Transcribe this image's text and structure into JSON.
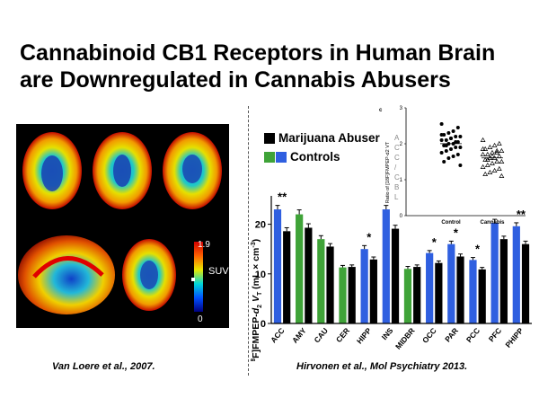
{
  "slide": {
    "title_line1": "Cannabinoid CB1 Receptors in Human Brain",
    "title_line2": "are Downregulated in Cannabis Abusers",
    "citation_left": "Van Loere et al., 2007.",
    "citation_right": "Hirvonen et al., Mol Psychiatry 2013."
  },
  "pet_scan": {
    "colorbar_max": "1.9",
    "colorbar_min": "0",
    "colorbar_unit": "SUV"
  },
  "colors": {
    "marijuana": "#000000",
    "controls_blue": "#2f5fe0",
    "controls_green": "#3fa338"
  },
  "chart_data": [
    {
      "type": "bar",
      "categories": [
        "ACC",
        "AMY",
        "CAU",
        "CER",
        "HIPP",
        "INS",
        "MIDBR",
        "OCC",
        "PAR",
        "PCC",
        "PFC",
        "PHIPP"
      ],
      "series": [
        {
          "name": "Controls",
          "values": [
            23,
            22,
            17,
            11.3,
            15,
            23,
            11,
            14.2,
            16,
            12.8,
            20.3,
            19.6
          ],
          "errors": [
            0.8,
            0.9,
            0.7,
            0.4,
            0.7,
            0.8,
            0.5,
            0.5,
            0.6,
            0.5,
            0.7,
            0.7
          ]
        },
        {
          "name": "Marijuana Abuser",
          "values": [
            18.6,
            19.3,
            15.5,
            11.4,
            12.9,
            19.1,
            11.4,
            12.2,
            13.5,
            10.9,
            17,
            16
          ],
          "errors": [
            0.7,
            0.8,
            0.6,
            0.4,
            0.5,
            0.7,
            0.4,
            0.4,
            0.5,
            0.4,
            0.6,
            0.6
          ]
        }
      ],
      "significance": [
        "**",
        "",
        "",
        "",
        "*",
        "",
        "",
        "*",
        "*",
        "*",
        "",
        "**"
      ],
      "ylabel": "[18F]FMPEP-d2 VT (mL × cm-3)",
      "ylabel_main": "[",
      "ylabel_sup1": "18",
      "ylabel_mid": "F]FMPEP-",
      "ylabel_d": "d",
      "ylabel_sub2": "2",
      "ylabel_v": " V",
      "ylabel_subT": "T",
      "ylabel_unit": " (mL × cm",
      "ylabel_sup3": "-3",
      "ylabel_close": ")",
      "yticks": [
        0,
        10,
        20
      ],
      "ylim": [
        0,
        25
      ],
      "legend": {
        "marijuana": "Marijuana Abuser",
        "controls": "Controls"
      },
      "grid": false
    },
    {
      "type": "scatter",
      "panel_letter": "c",
      "groups": [
        "Control",
        "Cannabis"
      ],
      "ylabel": "Ratio of [18F]FMPEP-d2 VT",
      "ylabel_side_letters": [
        "A",
        "C",
        "C",
        "/",
        "C",
        "B",
        "L"
      ],
      "yticks": [
        0,
        1,
        2,
        3
      ],
      "ylim": [
        0,
        3
      ],
      "control_values": [
        2.55,
        2.45,
        2.35,
        2.3,
        2.25,
        2.2,
        2.2,
        2.15,
        2.1,
        2.1,
        2.05,
        2.0,
        2.0,
        1.95,
        1.9,
        1.9,
        1.85,
        1.8,
        1.75,
        1.7,
        1.65,
        1.6,
        1.5,
        1.4,
        2.05,
        2.15,
        1.95,
        2.25
      ],
      "cannabis_values": [
        2.1,
        2.0,
        1.95,
        1.9,
        1.85,
        1.8,
        1.8,
        1.75,
        1.7,
        1.7,
        1.65,
        1.6,
        1.6,
        1.55,
        1.5,
        1.5,
        1.45,
        1.4,
        1.35,
        1.3,
        1.25,
        1.2,
        1.15,
        1.1,
        1.75,
        1.65,
        1.55,
        1.85
      ]
    }
  ]
}
